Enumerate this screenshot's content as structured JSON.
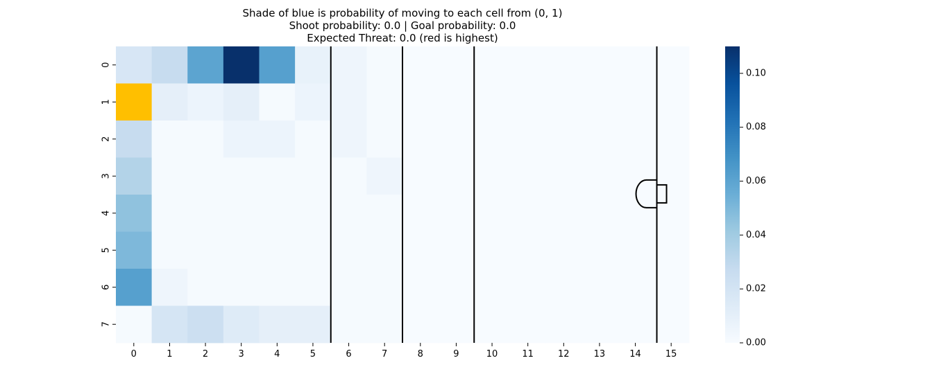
{
  "chart_data": {
    "type": "heatmap",
    "title_lines": [
      "Shade of blue is probability of moving to each cell from (0, 1)",
      "Shoot probability: 0.0 | Goal probability: 0.0",
      "Expected Threat: 0.0 (red is highest)"
    ],
    "x_ticks": [
      "0",
      "1",
      "2",
      "3",
      "4",
      "5",
      "6",
      "7",
      "8",
      "9",
      "10",
      "11",
      "12",
      "13",
      "14",
      "15"
    ],
    "y_ticks": [
      "0",
      "1",
      "2",
      "3",
      "4",
      "5",
      "6",
      "7"
    ],
    "values": [
      [
        0.018,
        0.027,
        0.06,
        0.11,
        0.062,
        0.008,
        0.005,
        0.001,
        0,
        0,
        0,
        0,
        0,
        0,
        0,
        0
      ],
      [
        null,
        0.01,
        0.006,
        0.01,
        0.001,
        0.006,
        0.005,
        0.001,
        0,
        0,
        0,
        0,
        0,
        0,
        0,
        0
      ],
      [
        0.027,
        0.001,
        0.001,
        0.006,
        0.006,
        0.001,
        0.005,
        0.001,
        0,
        0,
        0,
        0,
        0,
        0,
        0,
        0
      ],
      [
        0.034,
        0.001,
        0.001,
        0.001,
        0.001,
        0.001,
        0.001,
        0.005,
        0,
        0,
        0,
        0,
        0,
        0,
        0,
        0
      ],
      [
        0.045,
        0.001,
        0.001,
        0.001,
        0.001,
        0.001,
        0.001,
        0.001,
        0,
        0,
        0,
        0,
        0,
        0,
        0,
        0
      ],
      [
        0.05,
        0.001,
        0.001,
        0.001,
        0.001,
        0.001,
        0.001,
        0.001,
        0,
        0,
        0,
        0,
        0,
        0,
        0,
        0
      ],
      [
        0.062,
        0.005,
        0.001,
        0.001,
        0.001,
        0.001,
        0.001,
        0.001,
        0,
        0,
        0,
        0,
        0,
        0,
        0,
        0
      ],
      [
        0.001,
        0.019,
        0.024,
        0.014,
        0.01,
        0.01,
        0.001,
        0.001,
        0,
        0,
        0,
        0,
        0,
        0,
        0,
        0
      ]
    ],
    "origin_cell": {
      "row": 1,
      "col": 0,
      "color": "#ffbf00"
    },
    "colorbar": {
      "min": 0.0,
      "max": 0.11,
      "ticks": [
        "0.00",
        "0.02",
        "0.04",
        "0.06",
        "0.08",
        "0.10"
      ],
      "tick_values": [
        0,
        0.02,
        0.04,
        0.06,
        0.08,
        0.1
      ],
      "colormap": "Blues"
    },
    "pitch_lines_at_x": [
      5.5,
      7.5,
      9.5,
      14.6
    ],
    "grid": false
  }
}
